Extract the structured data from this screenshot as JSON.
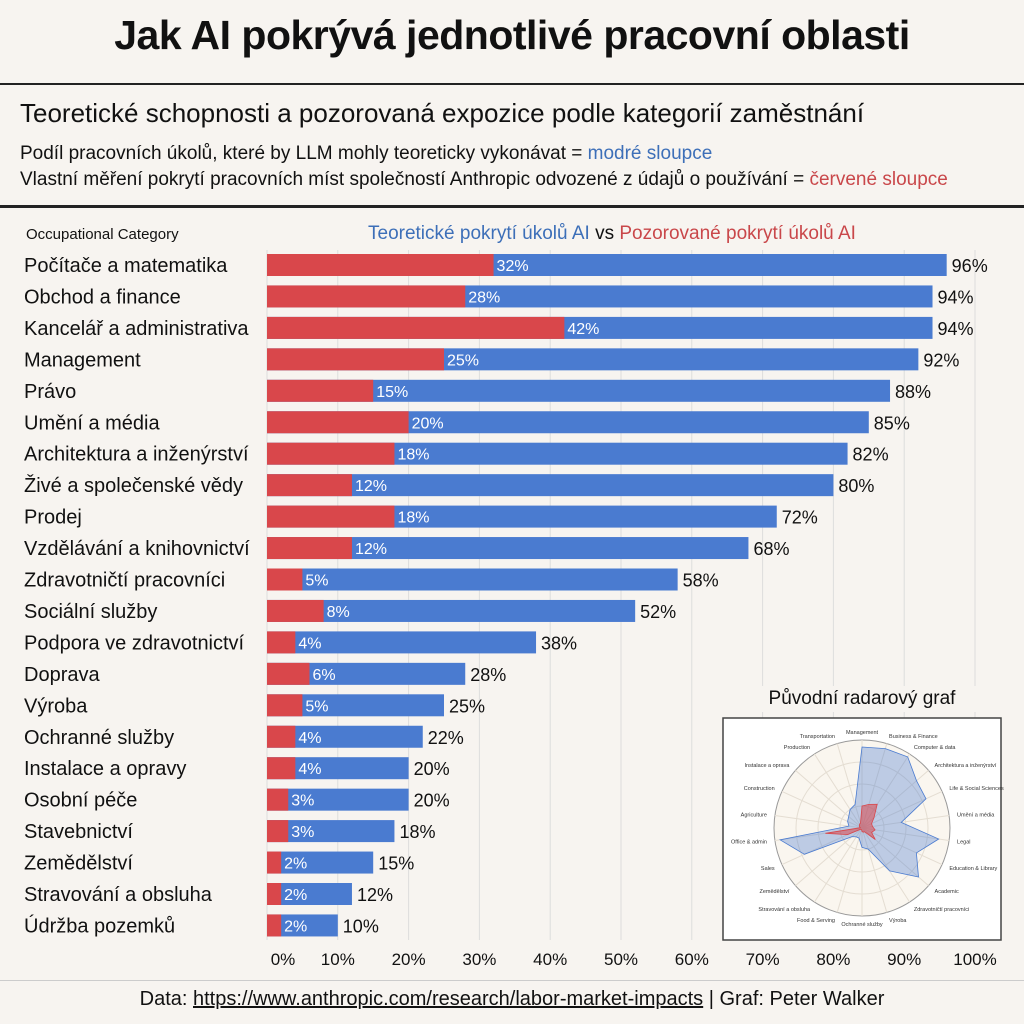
{
  "title": "Jak AI pokrývá jednotlivé pracovní oblasti",
  "subtitle": "Teoretické schopnosti a pozorovaná expozice podle kategorií zaměstnání",
  "desc1": {
    "text": "Podíl pracovních úkolů, které by LLM mohly teoreticky vykonávat = ",
    "highlight": "modré sloupce"
  },
  "desc2": {
    "text": "Vlastní měření pokrytí pracovních míst společností Anthropic odvozené z údajů o používání = ",
    "highlight": "červené sloupce"
  },
  "column_header": "Occupational Category",
  "footer": {
    "prefix": "Data: ",
    "link": "https://www.anthropic.com/research/labor-market-impacts",
    "suffix": " | Graf: Peter Walker"
  },
  "colors": {
    "blue": "#4a7bd0",
    "red": "#d9474b"
  },
  "chart_data": [
    {
      "type": "bar",
      "orientation": "horizontal",
      "legend": {
        "blue": "Teoretické pokrytí úkolů AI",
        "vs": "vs",
        "red": "Pozorované pokrytí úkolů AI"
      },
      "categories": [
        "Počítače a matematika",
        "Obchod a finance",
        "Kancelář a administrativa",
        "Management",
        "Právo",
        "Umění a média",
        "Architektura a inženýrství",
        "Živé a společenské vědy",
        "Prodej",
        "Vzdělávání a knihovnictví",
        "Zdravotničtí pracovníci",
        "Sociální služby",
        "Podpora ve zdravotnictví",
        "Doprava",
        "Výroba",
        "Ochranné služby",
        "Instalace a opravy",
        "Osobní péče",
        "Stavebnictví",
        "Zemědělství",
        "Stravování a obsluha",
        "Údržba pozemků"
      ],
      "series": [
        {
          "name": "Teoretické pokrytí úkolů AI",
          "values": [
            96,
            94,
            94,
            92,
            88,
            85,
            82,
            80,
            72,
            68,
            58,
            52,
            38,
            28,
            25,
            22,
            20,
            20,
            18,
            15,
            12,
            10
          ]
        },
        {
          "name": "Pozorované pokrytí úkolů AI",
          "values": [
            32,
            28,
            42,
            25,
            15,
            20,
            18,
            12,
            18,
            12,
            5,
            8,
            4,
            6,
            5,
            4,
            4,
            3,
            3,
            2,
            2,
            2
          ]
        }
      ],
      "xlim": [
        0,
        100
      ],
      "xticks": [
        "0%",
        "10%",
        "20%",
        "30%",
        "40%",
        "50%",
        "60%",
        "70%",
        "80%",
        "90%",
        "100%"
      ],
      "grid": true
    },
    {
      "type": "radar",
      "title": "Původní radarový graf",
      "labels": [
        "Management",
        "Business & Finance",
        "Computer & data",
        "Architektura a inženýrství",
        "Life & Social Sciences",
        "Umění a média",
        "Legal",
        "Education & Library",
        "Academic",
        "Zdravotničtí pracovníci",
        "Výroba",
        "Ochranné služby",
        "Food & Serving",
        "Stravování a obsluha",
        "Zemědělství",
        "Sales",
        "Office & admin",
        "Agriculture",
        "Construction",
        "Instalace a oprava",
        "Production",
        "Transportation"
      ],
      "series": [
        {
          "values": [
            92,
            94,
            96,
            82,
            80,
            45,
            88,
            68,
            85,
            58,
            25,
            22,
            12,
            12,
            15,
            72,
            94,
            15,
            18,
            20,
            25,
            28
          ]
        },
        {
          "values": [
            25,
            28,
            32,
            18,
            12,
            12,
            15,
            12,
            20,
            5,
            5,
            4,
            2,
            2,
            2,
            18,
            42,
            2,
            3,
            4,
            5,
            6
          ]
        }
      ]
    }
  ]
}
